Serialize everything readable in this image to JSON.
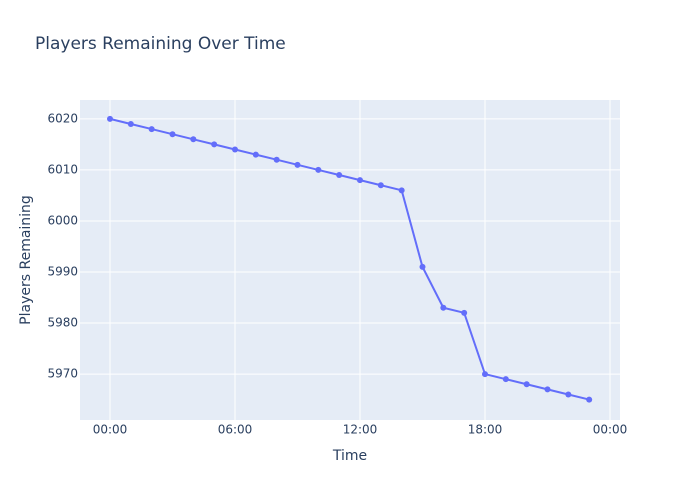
{
  "chart_data": {
    "type": "line",
    "title": "Players Remaining Over Time",
    "x_label": "Time",
    "y_label": "Players Remaining",
    "x": [
      0,
      1,
      2,
      3,
      4,
      5,
      6,
      7,
      8,
      9,
      10,
      11,
      12,
      13,
      14,
      15,
      16,
      17,
      18,
      19,
      20,
      21,
      22,
      23
    ],
    "series": [
      {
        "name": "Players Remaining",
        "color": "#636efa",
        "values": [
          6020,
          6019,
          6018,
          6017,
          6016,
          6015,
          6014,
          6013,
          6012,
          6011,
          6010,
          6009,
          6008,
          6007,
          6006,
          5991,
          5983,
          5982,
          5970,
          5969,
          5968,
          5967,
          5966,
          5965
        ]
      }
    ],
    "xlim": [
      -1.44,
      24.48
    ],
    "xticks": [
      {
        "value": 0,
        "label": "00:00"
      },
      {
        "value": 6,
        "label": "06:00"
      },
      {
        "value": 12,
        "label": "12:00"
      },
      {
        "value": 18,
        "label": "18:00"
      },
      {
        "value": 24,
        "label": "00:00"
      }
    ],
    "ylim": [
      5961,
      6023.7
    ],
    "yticks": [
      5970,
      5980,
      5990,
      6000,
      6010,
      6020
    ],
    "grid": true
  }
}
